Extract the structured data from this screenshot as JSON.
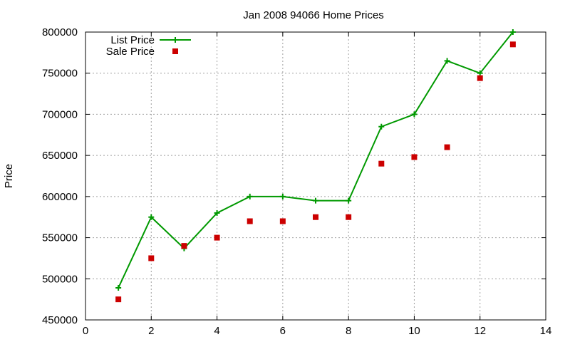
{
  "chart_data": {
    "type": "line",
    "title": "Jan 2008 94066 Home Prices",
    "xlabel": "",
    "ylabel": "Price",
    "xlim": [
      0,
      14
    ],
    "ylim": [
      450000,
      800000
    ],
    "xticks": [
      0,
      2,
      4,
      6,
      8,
      10,
      12,
      14
    ],
    "yticks": [
      450000,
      500000,
      550000,
      600000,
      650000,
      700000,
      750000,
      800000
    ],
    "grid": true,
    "legend_position": "top-left",
    "series": [
      {
        "name": "List Price",
        "style": "line+cross",
        "color": "#009900",
        "x": [
          1,
          2,
          3,
          4,
          5,
          6,
          7,
          8,
          9,
          10,
          11,
          12,
          13
        ],
        "y": [
          489000,
          575000,
          537000,
          580000,
          600000,
          600000,
          595000,
          595000,
          685000,
          700000,
          765000,
          750000,
          800000
        ]
      },
      {
        "name": "Sale Price",
        "style": "square",
        "color": "#cc0000",
        "x": [
          1,
          2,
          3,
          4,
          5,
          6,
          7,
          8,
          9,
          10,
          11,
          12,
          13
        ],
        "y": [
          475000,
          525000,
          540000,
          550000,
          570000,
          570000,
          575000,
          575000,
          640000,
          648000,
          660000,
          744000,
          785000
        ]
      }
    ]
  }
}
